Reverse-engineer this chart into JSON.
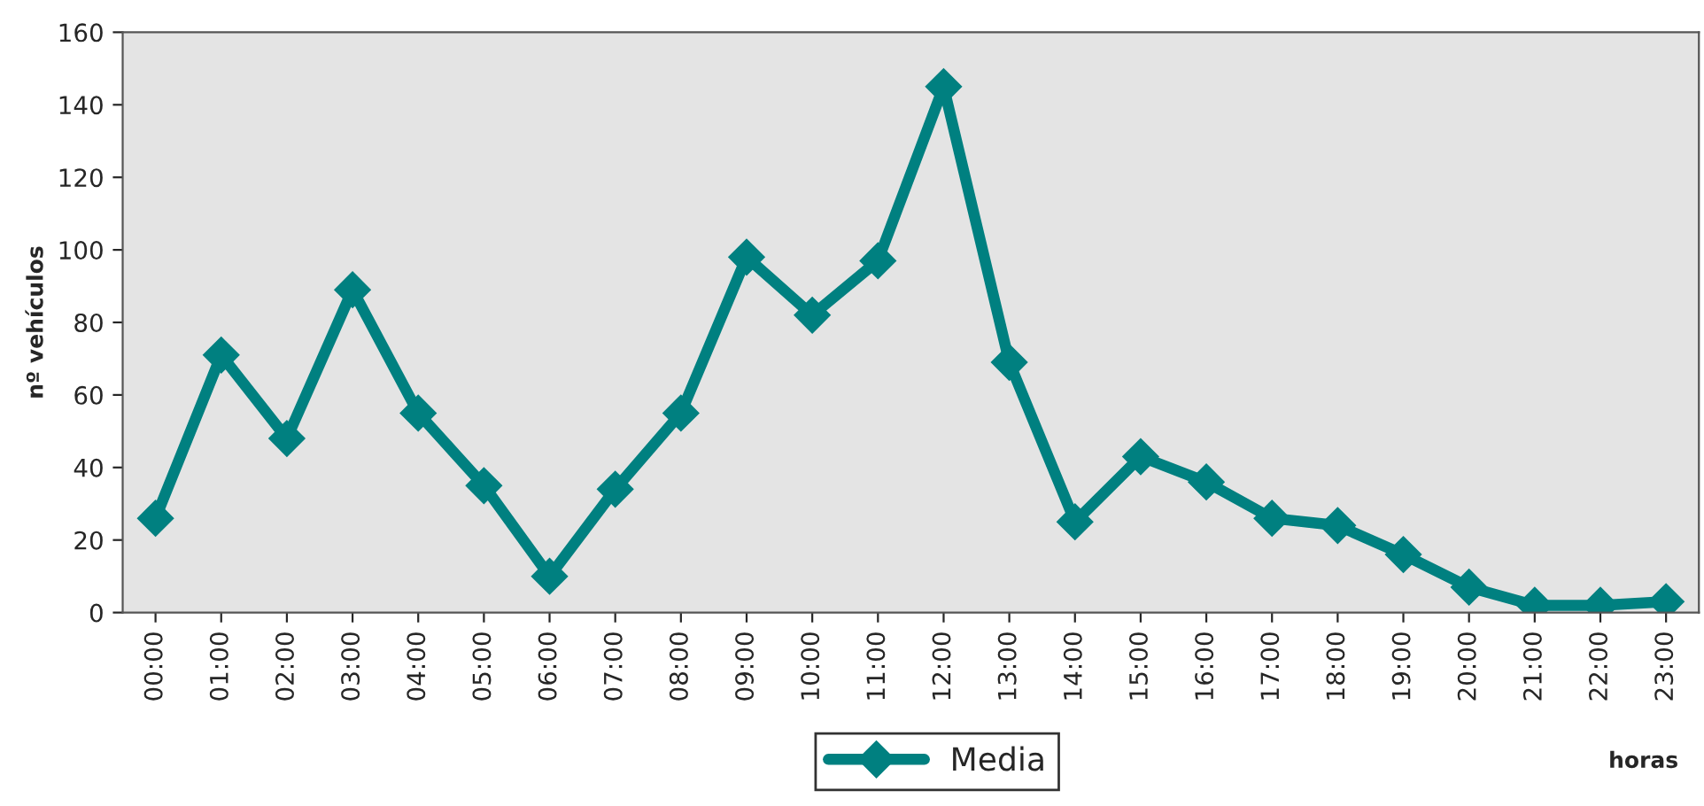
{
  "chart_data": {
    "type": "line",
    "xlabel": "horas",
    "ylabel": "nº vehículos",
    "categories": [
      "00:00",
      "01:00",
      "02:00",
      "03:00",
      "04:00",
      "05:00",
      "06:00",
      "07:00",
      "08:00",
      "09:00",
      "10:00",
      "11:00",
      "12:00",
      "13:00",
      "14:00",
      "15:00",
      "16:00",
      "17:00",
      "18:00",
      "19:00",
      "20:00",
      "21:00",
      "22:00",
      "23:00"
    ],
    "series": [
      {
        "name": "Media",
        "color": "#008080",
        "values": [
          26,
          71,
          48,
          89,
          55,
          35,
          10,
          34,
          55,
          98,
          82,
          97,
          145,
          69,
          25,
          43,
          36,
          26,
          24,
          16,
          7,
          2,
          2,
          3
        ]
      }
    ],
    "ylim": [
      0,
      160
    ],
    "yticks": [
      0,
      20,
      40,
      60,
      80,
      100,
      120,
      140,
      160
    ],
    "grid": false,
    "legend": "bottom",
    "marker": "diamond",
    "line_style": "solid"
  }
}
